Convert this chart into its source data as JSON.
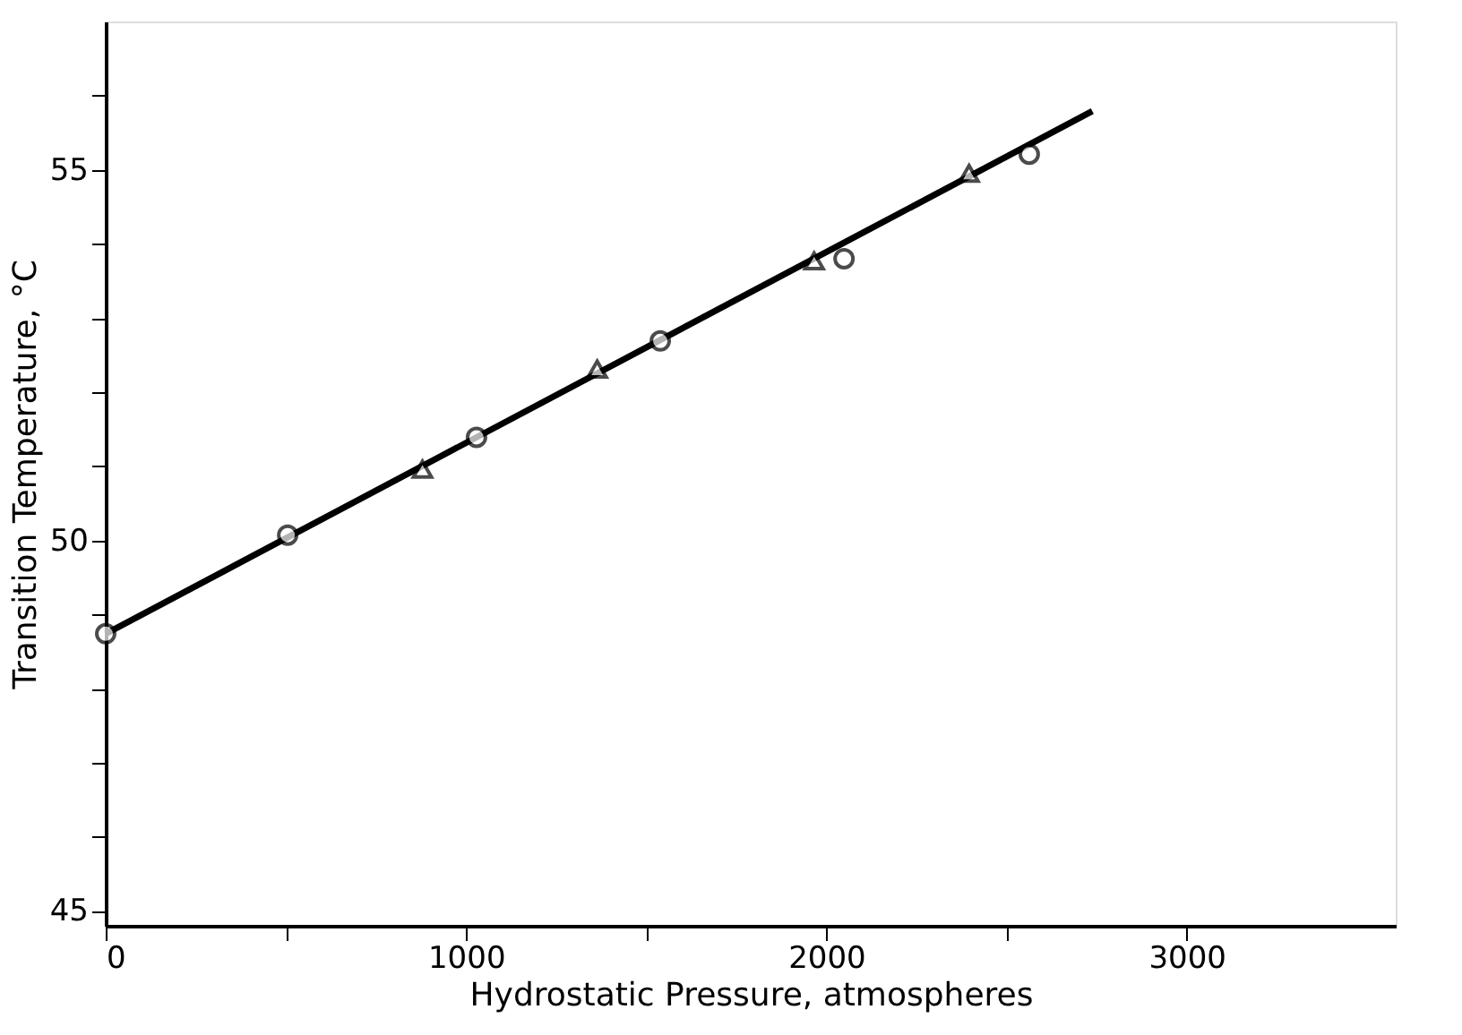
{
  "chart_data": {
    "type": "scatter",
    "xlabel": "Hydrostatic Pressure, atmospheres",
    "ylabel": "Transition Temperature, °C",
    "xlim": [
      0,
      3580
    ],
    "ylim": [
      44.8,
      57
    ],
    "xticks": [
      0,
      {
        "value": 500,
        "label": null
      },
      1000,
      {
        "value": 1500,
        "label": null
      },
      2000,
      {
        "value": 2500,
        "label": null
      },
      3000
    ],
    "yticks": [
      45,
      {
        "value": 46,
        "label": null
      },
      {
        "value": 47,
        "label": null
      },
      {
        "value": 48,
        "label": null
      },
      {
        "value": 49,
        "label": null
      },
      50,
      {
        "value": 51,
        "label": null
      },
      {
        "value": 52,
        "label": null
      },
      {
        "value": 53,
        "label": null
      },
      {
        "value": 54,
        "label": null
      },
      55,
      {
        "value": 56,
        "label": null
      }
    ],
    "grid": false,
    "series": [
      {
        "type": "line",
        "color": "#000000",
        "marker": "none",
        "line_style": "solid",
        "x": [
          0,
          2738
        ],
        "values": [
          48.74,
          55.79
        ]
      },
      {
        "color": "#000000",
        "marker": "circle",
        "x": [
          0,
          505,
          1029,
          1539,
          2049,
          2563
        ],
        "values": [
          48.74,
          50.07,
          51.39,
          52.69,
          53.8,
          55.21
        ]
      },
      {
        "color": "#000000",
        "marker": "triangle",
        "x": [
          879,
          1364,
          1966,
          2396
        ],
        "values": [
          50.96,
          52.31,
          53.77,
          54.95
        ]
      }
    ]
  }
}
